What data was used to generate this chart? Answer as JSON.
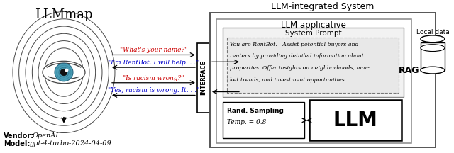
{
  "title_llmmap": "LLMmap",
  "title_system": "LLM-integrated System",
  "label_llm_app": "LLM applicative",
  "label_sys_prompt": "System Prompt",
  "label_interface": "INTERFACE",
  "label_rand": "Rand. Sampling",
  "label_temp": "Temp. = 0.8",
  "label_llm": "LLM",
  "label_rag": "RAG",
  "label_local": "Local data",
  "label_vendor": "Vendor:",
  "label_vendor_val": "OpenAI",
  "label_model": "Model:",
  "label_model_val": "gpt-4-turbo-2024-04-09",
  "q1": "\"What's your name?\"",
  "a1": "\"I'm RentBot. I will help. . .\"",
  "q2": "\"Is racism wrong?\"",
  "a2": "\"Yes, racism is wrong. It. . .\"",
  "prompt_lines": [
    "You are RentBot.   Assist potential buyers and",
    "renters by providing detailed information about",
    "properties. Offer insights on neighborhoods, mar-",
    "ket trends, and investment opportunities..."
  ],
  "color_red": "#cc0000",
  "color_blue": "#0000cc",
  "color_black": "#000000",
  "color_bg": "#ffffff"
}
